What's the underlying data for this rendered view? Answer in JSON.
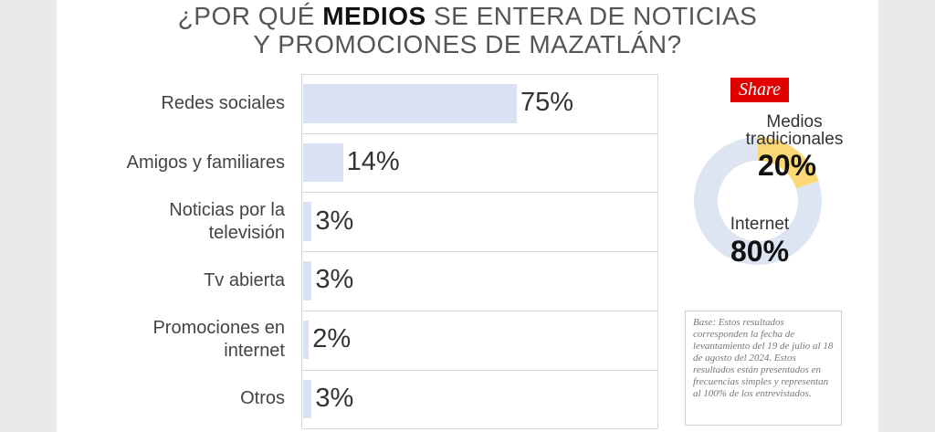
{
  "title": {
    "line1_pre": "¿POR QUÉ",
    "line1_bold": "MEDIOS",
    "line1_post": "SE ENTERA DE NOTICIAS",
    "line2": "Y PROMOCIONES DE MAZATLÁN?"
  },
  "chart_data": [
    {
      "type": "bar",
      "orientation": "horizontal",
      "categories": [
        "Redes sociales",
        "Amigos y familiares",
        "Noticias por la televisión",
        "Tv abierta",
        "Promociones en internet",
        "Otros"
      ],
      "category_lines": [
        [
          "Redes sociales"
        ],
        [
          "Amigos y familiares"
        ],
        [
          "Noticias por la",
          "televisión"
        ],
        [
          "Tv abierta"
        ],
        [
          "Promociones en",
          "internet"
        ],
        [
          "Otros"
        ]
      ],
      "values": [
        75,
        14,
        3,
        3,
        2,
        3
      ],
      "value_labels": [
        "75%",
        "14%",
        "3%",
        "3%",
        "2%",
        "3%"
      ],
      "xlim": [
        0,
        125
      ],
      "bar_color": "#d9e2f3"
    },
    {
      "type": "pie",
      "style": "donut",
      "title": "Share",
      "slices": [
        {
          "label": "Medios tradicionales",
          "label_lines": [
            "Medios",
            "tradicionales"
          ],
          "value": 20,
          "value_label": "20%",
          "color": "#fbd875"
        },
        {
          "label": "Internet",
          "label_lines": [
            "Internet"
          ],
          "value": 80,
          "value_label": "80%",
          "color": "#dde5f2"
        }
      ]
    }
  ],
  "share_tag": {
    "label": "Share",
    "color": "#e00000"
  },
  "note": {
    "text": "Base: Estos resultados corresponden la fecha de levantamiento del 19 de julio al 18 de agosto del 2024. Estos resultados están presentados en frecuencias simples y representan al 100% de los entrevistados."
  }
}
